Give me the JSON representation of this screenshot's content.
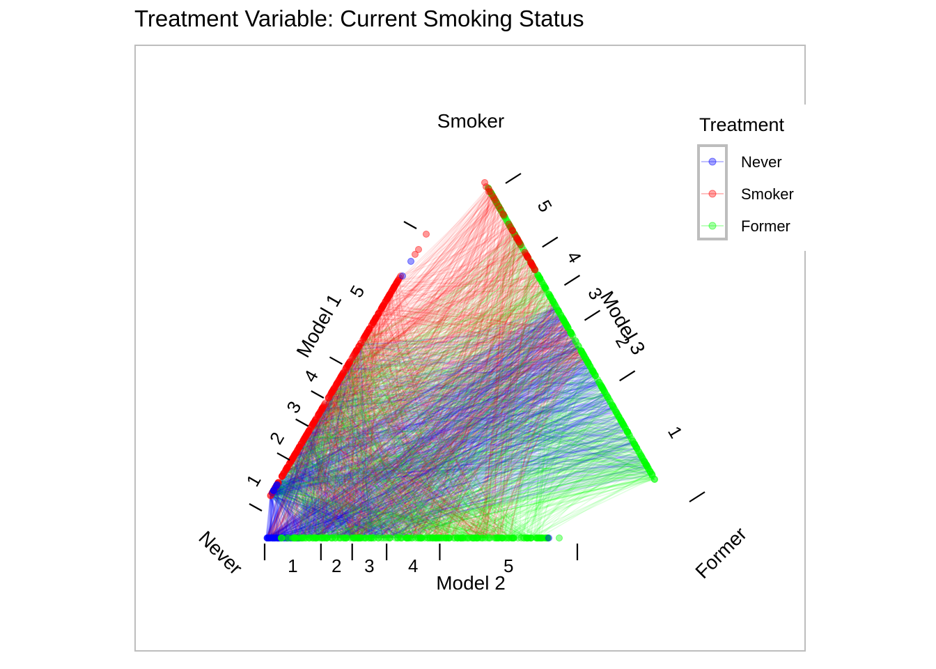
{
  "title": "Treatment Variable: Current Smoking Status",
  "legend": {
    "title": "Treatment",
    "items": [
      {
        "label": "Never",
        "color": "#0000ff"
      },
      {
        "label": "Smoker",
        "color": "#ff0000"
      },
      {
        "label": "Former",
        "color": "#00ff00"
      }
    ]
  },
  "chart_data": {
    "type": "scatter",
    "subtype": "triangular-parallel-coordinates",
    "vertices": [
      "Smoker",
      "Never",
      "Former"
    ],
    "models": [
      {
        "name": "Model 1",
        "side": "Never-Smoker",
        "quintile_labels": [
          "1",
          "2",
          "3",
          "4",
          "5"
        ]
      },
      {
        "name": "Model 2",
        "side": "Never-Former",
        "quintile_labels": [
          "1",
          "2",
          "3",
          "4",
          "5"
        ]
      },
      {
        "name": "Model 3",
        "side": "Former-Smoker",
        "quintile_labels": [
          "1",
          "2",
          "3",
          "4",
          "5"
        ]
      }
    ],
    "series": [
      {
        "name": "Never",
        "color": "#0000ff"
      },
      {
        "name": "Smoker",
        "color": "#ff0000"
      },
      {
        "name": "Former",
        "color": "#00ff00"
      }
    ],
    "legend_position": "top-right"
  }
}
